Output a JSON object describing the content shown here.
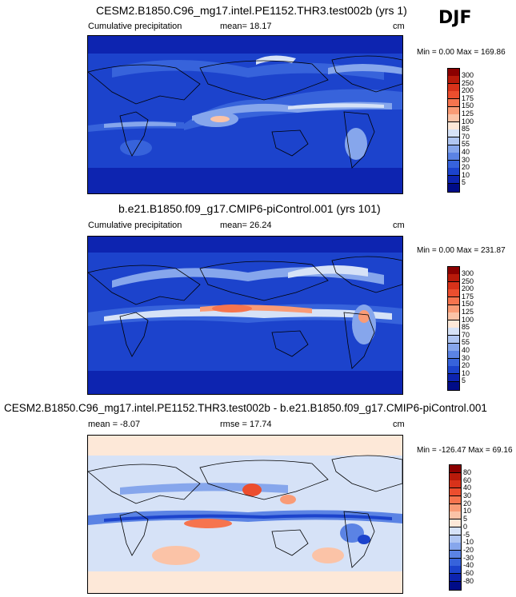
{
  "season": "DJF",
  "panels": [
    {
      "title": "CESM2.B1850.C96_mg17.intel.PE1152.THR3.test002b (yrs 1)",
      "variable": "Cumulative precipitation",
      "stat_text": "mean=  18.17",
      "units": "cm",
      "minmax": "Min =   0.00 Max = 169.86"
    },
    {
      "title": "b.e21.B1850.f09_g17.CMIP6-piControl.001 (yrs 101)",
      "variable": "Cumulative precipitation",
      "stat_text": "mean=  26.24",
      "units": "cm",
      "minmax": "Min =   0.00 Max = 231.87"
    },
    {
      "title": "CESM2.B1850.C96_mg17.intel.PE1152.THR3.test002b - b.e21.B1850.f09_g17.CMIP6-piControl.001",
      "variable": "mean =  -8.07",
      "stat_text": "rmse =  17.74",
      "units": "cm",
      "minmax": "Min = -126.47 Max =  69.16"
    }
  ],
  "colorbars": {
    "precip": {
      "labels": [
        "300",
        "250",
        "200",
        "175",
        "150",
        "125",
        "100",
        "85",
        "70",
        "55",
        "40",
        "30",
        "20",
        "10",
        "5"
      ],
      "colors": [
        "#8b0000",
        "#b81a0a",
        "#d8321a",
        "#ec4e2e",
        "#f6744e",
        "#f99b76",
        "#fbc3a7",
        "#fde8d8",
        "#d6e2f7",
        "#b0c6f2",
        "#86a6ec",
        "#5b83e4",
        "#3763db",
        "#1c43cc",
        "#0d24b0",
        "#000c88"
      ]
    },
    "diff": {
      "labels": [
        "80",
        "60",
        "40",
        "30",
        "20",
        "10",
        "5",
        "0",
        "-5",
        "-10",
        "-20",
        "-30",
        "-40",
        "-60",
        "-80"
      ],
      "colors": [
        "#8b0000",
        "#b81a0a",
        "#d8321a",
        "#ec4e2e",
        "#f6744e",
        "#f99b76",
        "#fbc3a7",
        "#fde8d8",
        "#d6e2f7",
        "#b0c6f2",
        "#86a6ec",
        "#5b83e4",
        "#3763db",
        "#1c43cc",
        "#0d24b0",
        "#000c88"
      ]
    }
  }
}
